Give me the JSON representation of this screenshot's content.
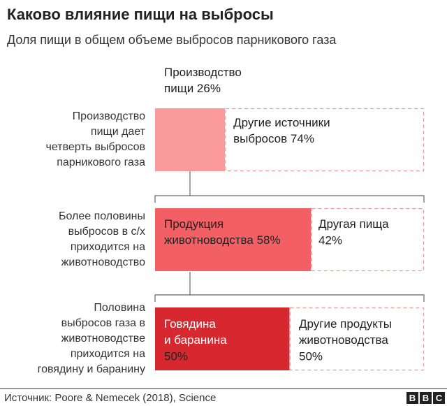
{
  "chart_data": {
    "type": "breakdown",
    "title": "Каково влияние пищи на выбросы",
    "subtitle": "Доля пищи в общем объеме выбросов парникового газа",
    "rows": [
      {
        "note": [
          "Производство",
          "пищи дает",
          "четверть выбросов",
          "парникового газа"
        ],
        "series": [
          {
            "name": [
              "Производство",
              "пищи"
            ],
            "color": "#fb9a9a",
            "values": [
              26
            ],
            "value_labels": [
              "26%"
            ]
          },
          {
            "name": [
              "Другие источники",
              "выбросов"
            ],
            "color": "#e89a9a",
            "values": [
              74
            ],
            "value_labels": [
              "74%"
            ]
          }
        ]
      },
      {
        "note": [
          "Более половины",
          "выбросов в с/х",
          "приходится на",
          "животноводство"
        ],
        "series": [
          {
            "name": [
              "Продукция",
              "животноводства"
            ],
            "color": "#f26065",
            "values": [
              58
            ],
            "value_labels": [
              "58%"
            ]
          },
          {
            "name": [
              "Другая пища"
            ],
            "color": "#e89a9a",
            "values": [
              42
            ],
            "value_labels": [
              "42%"
            ]
          }
        ]
      },
      {
        "note": [
          "Половина",
          "выбросов газа в",
          "животноводстве",
          "приходится на",
          "говядину и баранину"
        ],
        "series": [
          {
            "name": [
              "Говядина",
              "и баранина"
            ],
            "color": "#d7282f",
            "values": [
              50
            ],
            "value_labels": [
              "50%"
            ]
          },
          {
            "name": [
              "Другие продукты",
              "животноводства"
            ],
            "color": "#e89a9a",
            "values": [
              50
            ],
            "value_labels": [
              "50%"
            ]
          }
        ]
      }
    ],
    "source": "Источник: Poore & Nemecek (2018), Science",
    "logo": [
      "B",
      "B",
      "C"
    ]
  }
}
